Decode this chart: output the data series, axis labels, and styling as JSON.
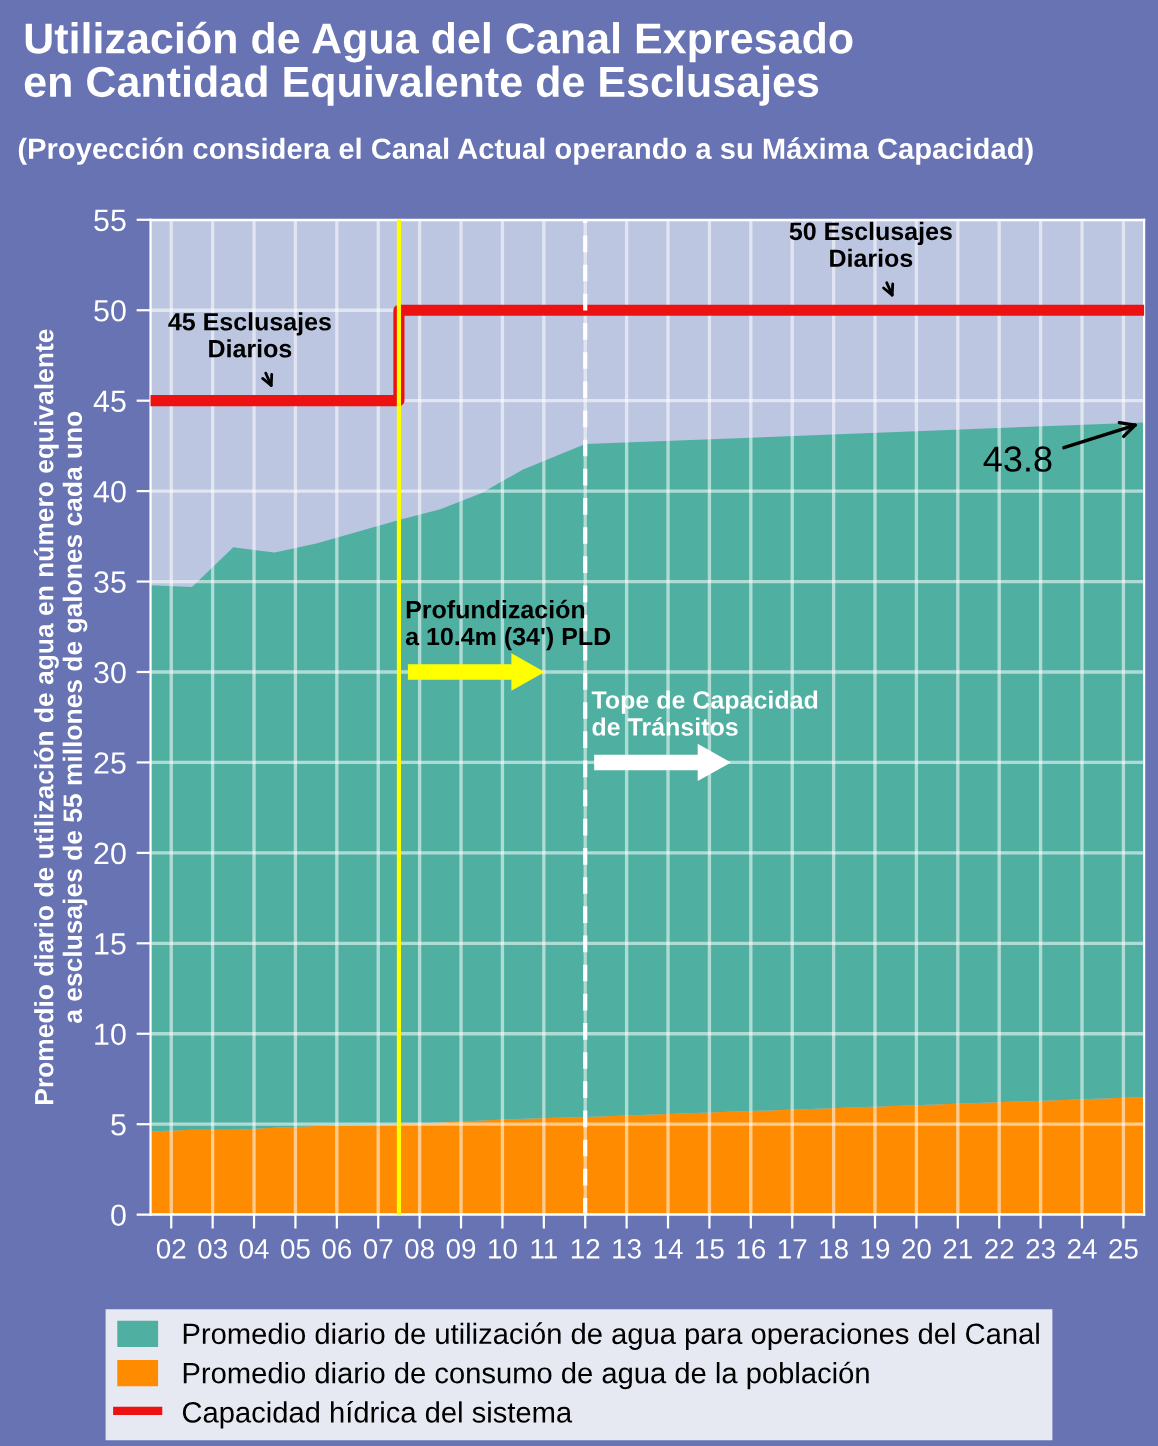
{
  "chart_data": {
    "type": "area",
    "title": "Utilización de Agua del Canal Expresado\nen Cantidad Equivalente de Esclusajes",
    "subtitle": "(Proyección considera el Canal Actual operando a su Máxima Capacidad)",
    "ylabel": "Promedio diario de utilización de agua en número equivalente\na esclusajes de 55 millones de galones cada uno",
    "x": [
      1.5,
      2.5,
      3.5,
      4.5,
      5.5,
      7.5,
      8.5,
      9.5,
      10.5,
      12,
      25.5
    ],
    "stacked": true,
    "series": [
      {
        "name": "Promedio diario de consumo de agua de la población",
        "color": "#ff8c00",
        "values": [
          4.6,
          4.7,
          4.7,
          4.8,
          4.9,
          5.0,
          5.1,
          5.2,
          5.3,
          5.4,
          6.5
        ]
      },
      {
        "name": "Promedio diario de utilización de agua para operaciones del Canal",
        "color": "#4fb0a2",
        "values": [
          30.2,
          30.0,
          32.2,
          31.8,
          32.2,
          33.4,
          33.9,
          34.7,
          35.9,
          37.2,
          37.3
        ]
      },
      {
        "name": "Capacidad hídrica del sistema",
        "type": "step",
        "color": "#ee1111",
        "x": [
          1.5,
          7.5,
          25.5
        ],
        "values": [
          45,
          50,
          50
        ]
      }
    ],
    "xlim": [
      1.5,
      25.5
    ],
    "xticks": [
      {
        "value": 2,
        "label": "02"
      },
      {
        "value": 3,
        "label": "03"
      },
      {
        "value": 4,
        "label": "04"
      },
      {
        "value": 5,
        "label": "05"
      },
      {
        "value": 6,
        "label": "06"
      },
      {
        "value": 7,
        "label": "07"
      },
      {
        "value": 8,
        "label": "08"
      },
      {
        "value": 9,
        "label": "09"
      },
      {
        "value": 10,
        "label": "10"
      },
      {
        "value": 11,
        "label": "11"
      },
      {
        "value": 12,
        "label": "12"
      },
      {
        "value": 13,
        "label": "13"
      },
      {
        "value": 14,
        "label": "14"
      },
      {
        "value": 15,
        "label": "15"
      },
      {
        "value": 16,
        "label": "16"
      },
      {
        "value": 17,
        "label": "17"
      },
      {
        "value": 18,
        "label": "18"
      },
      {
        "value": 19,
        "label": "19"
      },
      {
        "value": 20,
        "label": "20"
      },
      {
        "value": 21,
        "label": "21"
      },
      {
        "value": 22,
        "label": "22"
      },
      {
        "value": 23,
        "label": "23"
      },
      {
        "value": 24,
        "label": "24"
      },
      {
        "value": 25,
        "label": "25"
      }
    ],
    "ylim": [
      0,
      55
    ],
    "yticks": [
      0,
      5,
      10,
      15,
      20,
      25,
      30,
      35,
      40,
      45,
      50,
      55
    ],
    "grid": true,
    "legend": "bottom",
    "ref_lines": [
      {
        "axis": "x",
        "value": 7.5,
        "label": "Profundización\na 10.4m (34') PLD",
        "color": "#ffff00",
        "line_style": "solid"
      },
      {
        "axis": "x",
        "value": 12,
        "label": "Tope de Capacidad\nde Tránsitos",
        "color": "#ffffff",
        "line_style": "dashed"
      }
    ],
    "annotations": [
      {
        "text": "45 Esclusajes\nDiarios",
        "x": 4.5,
        "y": 45
      },
      {
        "text": "50 Esclusajes\nDiarios",
        "x": 19.5,
        "y": 50
      },
      {
        "text": "43.8",
        "x": 25.5,
        "y": 43.8
      }
    ]
  }
}
